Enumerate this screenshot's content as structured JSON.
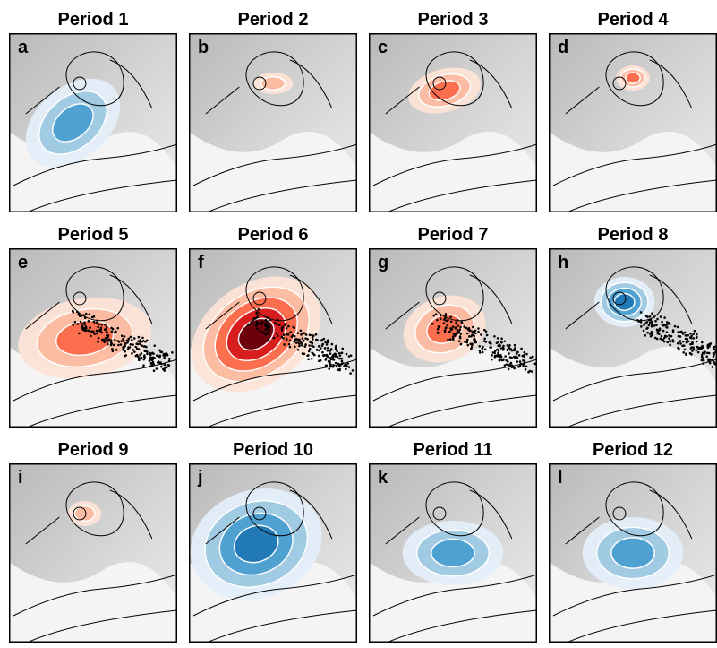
{
  "panels": [
    {
      "title": "Period 1",
      "letter": "a"
    },
    {
      "title": "Period 2",
      "letter": "b"
    },
    {
      "title": "Period 3",
      "letter": "c"
    },
    {
      "title": "Period 4",
      "letter": "d"
    },
    {
      "title": "Period 5",
      "letter": "e"
    },
    {
      "title": "Period 6",
      "letter": "f"
    },
    {
      "title": "Period 7",
      "letter": "g"
    },
    {
      "title": "Period 8",
      "letter": "h"
    },
    {
      "title": "Period 9",
      "letter": "i"
    },
    {
      "title": "Period 10",
      "letter": "j"
    },
    {
      "title": "Period 11",
      "letter": "k"
    },
    {
      "title": "Period 12",
      "letter": "l"
    }
  ]
}
